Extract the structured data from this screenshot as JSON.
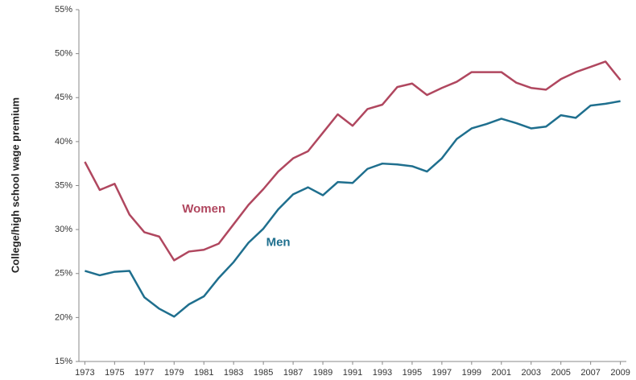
{
  "chart_data": {
    "type": "line",
    "y_label": "College/high school wage premium",
    "x": [
      1973,
      1974,
      1975,
      1976,
      1977,
      1978,
      1979,
      1980,
      1981,
      1982,
      1983,
      1984,
      1985,
      1986,
      1987,
      1988,
      1989,
      1990,
      1991,
      1992,
      1993,
      1994,
      1995,
      1996,
      1997,
      1998,
      1999,
      2000,
      2001,
      2002,
      2003,
      2004,
      2005,
      2006,
      2007,
      2008,
      2009
    ],
    "series": [
      {
        "name": "Women",
        "color": "#b0475f",
        "values": [
          37.7,
          34.5,
          35.2,
          31.7,
          29.7,
          29.2,
          26.5,
          27.5,
          27.7,
          28.4,
          30.6,
          32.8,
          34.6,
          36.6,
          38.1,
          38.9,
          41.0,
          43.1,
          41.8,
          43.7,
          44.2,
          46.2,
          46.6,
          45.3,
          46.1,
          46.8,
          47.9,
          47.9,
          47.9,
          46.7,
          46.1,
          45.9,
          47.1,
          47.9,
          48.5,
          49.1,
          47.0
        ]
      },
      {
        "name": "Men",
        "color": "#1f6f8e",
        "values": [
          25.3,
          24.8,
          25.2,
          25.3,
          22.3,
          21.0,
          20.1,
          21.5,
          22.4,
          24.5,
          26.3,
          28.5,
          30.1,
          32.3,
          34.0,
          34.8,
          33.9,
          35.4,
          35.3,
          36.9,
          37.5,
          37.4,
          37.2,
          36.6,
          38.1,
          40.3,
          41.5,
          42.0,
          42.6,
          42.1,
          41.5,
          41.7,
          43.0,
          42.7,
          44.1,
          44.3,
          44.6
        ]
      }
    ],
    "xlim": [
      1972.6,
      2009.4
    ],
    "xticks": [
      1973,
      1975,
      1977,
      1979,
      1981,
      1983,
      1985,
      1987,
      1989,
      1991,
      1993,
      1995,
      1997,
      1999,
      2001,
      2003,
      2005,
      2007,
      2009
    ],
    "ylim": [
      15,
      55
    ],
    "yticks": [
      {
        "value": 15,
        "label": "15%"
      },
      {
        "value": 20,
        "label": "20%"
      },
      {
        "value": 25,
        "label": "25%"
      },
      {
        "value": 30,
        "label": "30%"
      },
      {
        "value": 35,
        "label": "35%"
      },
      {
        "value": 40,
        "label": "40%"
      },
      {
        "value": 45,
        "label": "45%"
      },
      {
        "value": 50,
        "label": "50%"
      },
      {
        "value": 55,
        "label": "55%"
      }
    ],
    "grid": false
  }
}
